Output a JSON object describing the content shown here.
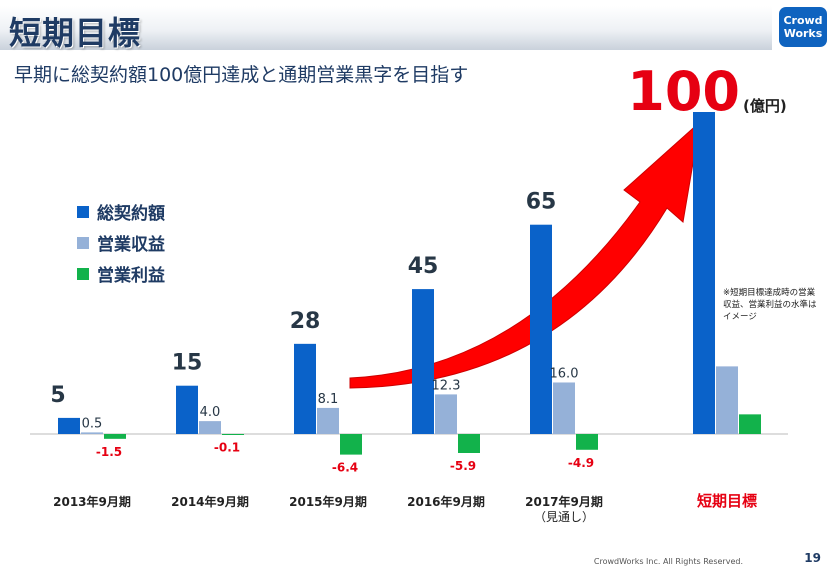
{
  "page": {
    "title": "短期目標",
    "subtitle": "早期に総契約額100億円達成と通期営業黒字を目指す",
    "logo_line1": "Crowd",
    "logo_line2": "Works",
    "note": "※短期目標達成時の営業収益、営業利益の水準はイメージ",
    "footer": "CrowdWorks Inc. All Rights Reserved.",
    "page_number": "19"
  },
  "colors": {
    "contract": "#0a62c9",
    "revenue": "#95b1d8",
    "profit": "#12b24b",
    "arrow": "#ff0000",
    "label_red": "#e60012",
    "text_dark": "#1f3b64"
  },
  "chart_data": {
    "type": "bar",
    "categories": [
      "2013年9月期",
      "2014年9月期",
      "2015年9月期",
      "2016年9月期",
      "2017年9月期",
      "短期目標"
    ],
    "category_sublabels": [
      "",
      "",
      "",
      "",
      "（見通し）",
      ""
    ],
    "series": [
      {
        "name": "総契約額",
        "values": [
          5,
          15,
          28,
          45,
          65,
          100
        ],
        "labels": [
          "5",
          "15",
          "28",
          "45",
          "65",
          "100"
        ]
      },
      {
        "name": "営業収益",
        "values": [
          0.5,
          4.0,
          8.1,
          12.3,
          16.0,
          21
        ],
        "labels": [
          "0.5",
          "4.0",
          "8.1",
          "12.3",
          "16.0",
          ""
        ]
      },
      {
        "name": "営業利益",
        "values": [
          -1.5,
          -0.1,
          -6.4,
          -5.9,
          -4.9,
          6.1
        ],
        "labels": [
          "-1.5",
          "-0.1",
          "-6.4",
          "-5.9",
          "-4.9",
          ""
        ]
      }
    ],
    "target_unit": "(億円)",
    "ylim": [
      -7,
      100
    ],
    "annotation": "red arrow rising toward 100"
  }
}
